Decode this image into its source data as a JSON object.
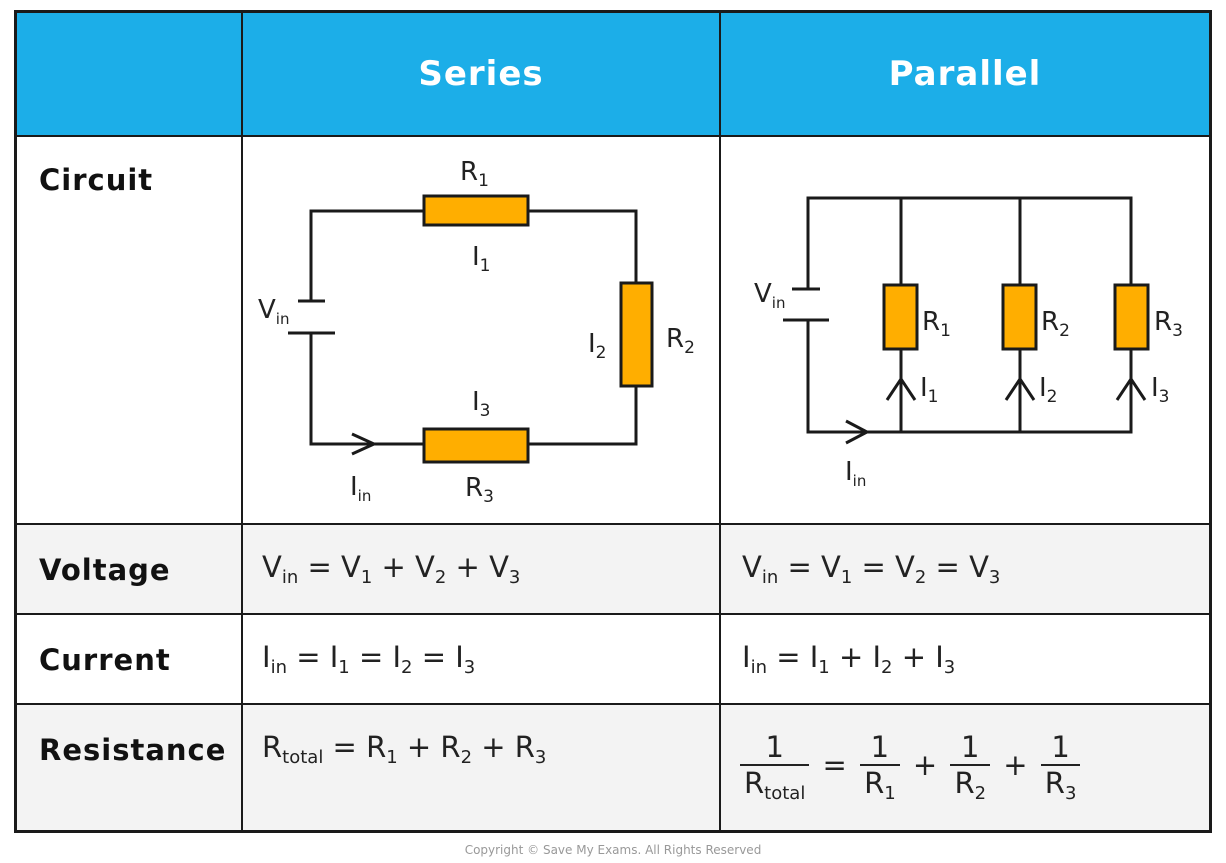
{
  "header": {
    "col1": "",
    "series": "Series",
    "parallel": "Parallel"
  },
  "rows": {
    "circuit": "Circuit",
    "voltage": "Voltage",
    "current": "Current",
    "resistance": "Resistance"
  },
  "colors": {
    "header": "#1caee8",
    "resistor": "#ffae00",
    "row_alt": "#f3f3f3"
  },
  "series_circuit": {
    "R1": "R",
    "R1s": "1",
    "R2": "R",
    "R2s": "2",
    "R3": "R",
    "R3s": "3",
    "I1": "I",
    "I1s": "1",
    "I2": "I",
    "I2s": "2",
    "I3": "I",
    "I3s": "3",
    "Iin": "I",
    "Iins": "in",
    "Vin": "V",
    "Vins": "in"
  },
  "parallel_circuit": {
    "R1": "R",
    "R1s": "1",
    "R2": "R",
    "R2s": "2",
    "R3": "R",
    "R3s": "3",
    "I1": "I",
    "I1s": "1",
    "I2": "I",
    "I2s": "2",
    "I3": "I",
    "I3s": "3",
    "Iin": "I",
    "Iins": "in",
    "Vin": "V",
    "Vins": "in"
  },
  "formulas": {
    "series_voltage": [
      "V",
      "in",
      " = V",
      "1",
      " + V",
      "2",
      " + V",
      "3"
    ],
    "parallel_voltage": [
      "V",
      "in",
      " = V",
      "1",
      " = V",
      "2",
      " = V",
      "3"
    ],
    "series_current": [
      "I",
      "in",
      " = I",
      "1",
      " = I",
      "2",
      " = I",
      "3"
    ],
    "parallel_current": [
      "I",
      "in",
      " = I",
      "1",
      " + I",
      "2",
      " + I",
      "3"
    ],
    "series_resistance": [
      "R",
      "total",
      " = R",
      "1",
      " + R",
      "2",
      " + R",
      "3"
    ],
    "parallel_resistance": {
      "one": "1",
      "R": "R",
      "total": "total",
      "eq": "=",
      "plus": "+",
      "s1": "1",
      "s2": "2",
      "s3": "3"
    }
  },
  "copyright": "Copyright © Save My Exams. All Rights Reserved"
}
